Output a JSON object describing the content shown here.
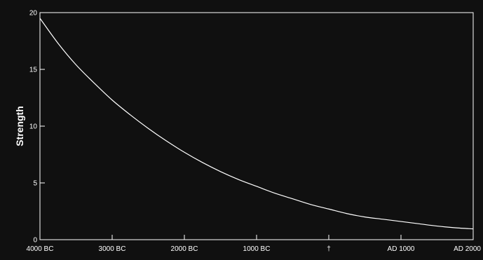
{
  "chart_data": {
    "type": "line",
    "title": "",
    "xlabel": "",
    "ylabel": "Strength",
    "xlim": [
      -4000,
      2000
    ],
    "ylim": [
      0,
      20
    ],
    "grid": false,
    "x_ticks": [
      {
        "value": -4000,
        "label": "4000 BC"
      },
      {
        "value": -3000,
        "label": "3000 BC"
      },
      {
        "value": -2000,
        "label": "2000 BC"
      },
      {
        "value": -1000,
        "label": "1000 BC"
      },
      {
        "value": 0,
        "label": "†"
      },
      {
        "value": 1000,
        "label": "AD 1000"
      },
      {
        "value": 2000,
        "label": "AD 2000"
      }
    ],
    "y_ticks": [
      {
        "value": 0,
        "label": "0"
      },
      {
        "value": 5,
        "label": "5"
      },
      {
        "value": 10,
        "label": "10"
      },
      {
        "value": 15,
        "label": "15"
      },
      {
        "value": 20,
        "label": "20"
      }
    ],
    "series": [
      {
        "color": "#ffffff",
        "x": [
          -4000,
          -3750,
          -3500,
          -3250,
          -3000,
          -2750,
          -2500,
          -2250,
          -2000,
          -1750,
          -1500,
          -1250,
          -1000,
          -750,
          -500,
          -250,
          0,
          250,
          500,
          750,
          1000,
          1250,
          1500,
          1750,
          2000
        ],
        "y": [
          19.5,
          17.3,
          15.4,
          13.8,
          12.3,
          11.0,
          9.8,
          8.7,
          7.7,
          6.8,
          6.0,
          5.3,
          4.7,
          4.1,
          3.6,
          3.1,
          2.7,
          2.3,
          2.0,
          1.8,
          1.6,
          1.4,
          1.2,
          1.05,
          0.95
        ]
      }
    ],
    "colors": {
      "background": "#101010",
      "axes": "#ffffff",
      "line": "#ffffff"
    }
  }
}
